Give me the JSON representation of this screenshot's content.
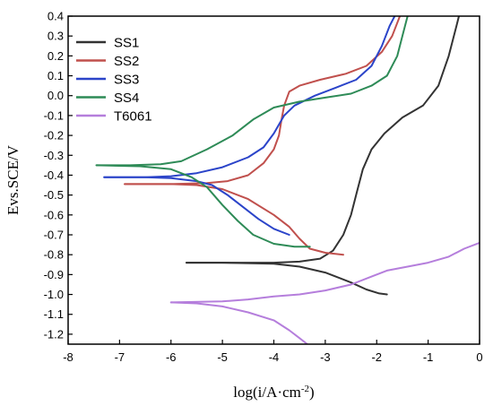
{
  "chart_data": {
    "type": "line",
    "title": "",
    "xlabel": "log(i/A·cm",
    "xlabel_sup": "-2",
    "xlabel_suffix": ")",
    "ylabel": "Evs.SCE/V",
    "xlim": [
      -8,
      0
    ],
    "ylim": [
      -1.25,
      0.4
    ],
    "x_ticks": [
      -8,
      -7,
      -6,
      -5,
      -4,
      -3,
      -2,
      -1,
      0
    ],
    "x_tick_labels": [
      "-8",
      "-7",
      "-6",
      "-5",
      "-4",
      "-3",
      "-2",
      "-1",
      "0"
    ],
    "y_ticks": [
      0.4,
      0.3,
      0.2,
      0.1,
      0.0,
      -0.1,
      -0.2,
      -0.3,
      -0.4,
      -0.5,
      -0.6,
      -0.7,
      -0.8,
      -0.9,
      -1.0,
      -1.1,
      -1.2
    ],
    "y_tick_labels": [
      "0.4",
      "0.3",
      "0.2",
      "0.1",
      "0.0",
      "-0.1",
      "-0.2",
      "-0.3",
      "-0.4",
      "-0.5",
      "-0.6",
      "-0.7",
      "-0.8",
      "-0.9",
      "-1.0",
      "-1.1",
      "-1.2"
    ],
    "grid": false,
    "legend_position": "top-left",
    "series": [
      {
        "name": "SS1",
        "color": "#333333",
        "segments": [
          [
            [
              -5.7,
              -0.84
            ],
            [
              -5.0,
              -0.84
            ],
            [
              -4.0,
              -0.84
            ],
            [
              -3.5,
              -0.835
            ],
            [
              -3.1,
              -0.82
            ],
            [
              -2.85,
              -0.78
            ],
            [
              -2.65,
              -0.7
            ],
            [
              -2.5,
              -0.6
            ],
            [
              -2.38,
              -0.48
            ],
            [
              -2.27,
              -0.37
            ],
            [
              -2.1,
              -0.27
            ],
            [
              -1.85,
              -0.19
            ],
            [
              -1.5,
              -0.11
            ],
            [
              -1.1,
              -0.05
            ],
            [
              -0.8,
              0.05
            ],
            [
              -0.6,
              0.2
            ],
            [
              -0.45,
              0.35
            ],
            [
              -0.4,
              0.4
            ]
          ],
          [
            [
              -5.7,
              -0.84
            ],
            [
              -5.0,
              -0.84
            ],
            [
              -4.0,
              -0.845
            ],
            [
              -3.5,
              -0.86
            ],
            [
              -3.0,
              -0.89
            ],
            [
              -2.5,
              -0.94
            ],
            [
              -2.2,
              -0.975
            ],
            [
              -1.95,
              -0.995
            ],
            [
              -1.8,
              -1.0
            ]
          ]
        ]
      },
      {
        "name": "SS2",
        "color": "#C0504D",
        "segments": [
          [
            [
              -6.9,
              -0.445
            ],
            [
              -6.0,
              -0.445
            ],
            [
              -5.3,
              -0.44
            ],
            [
              -4.9,
              -0.43
            ],
            [
              -4.5,
              -0.4
            ],
            [
              -4.2,
              -0.34
            ],
            [
              -4.0,
              -0.27
            ],
            [
              -3.9,
              -0.2
            ],
            [
              -3.85,
              -0.12
            ],
            [
              -3.8,
              -0.05
            ],
            [
              -3.7,
              0.02
            ],
            [
              -3.5,
              0.05
            ],
            [
              -3.1,
              0.08
            ],
            [
              -2.6,
              0.11
            ],
            [
              -2.2,
              0.15
            ],
            [
              -1.9,
              0.22
            ],
            [
              -1.7,
              0.3
            ],
            [
              -1.55,
              0.4
            ]
          ],
          [
            [
              -6.9,
              -0.445
            ],
            [
              -6.0,
              -0.445
            ],
            [
              -5.5,
              -0.45
            ],
            [
              -5.0,
              -0.47
            ],
            [
              -4.5,
              -0.52
            ],
            [
              -4.0,
              -0.6
            ],
            [
              -3.7,
              -0.66
            ],
            [
              -3.5,
              -0.72
            ],
            [
              -3.3,
              -0.77
            ],
            [
              -3.0,
              -0.79
            ],
            [
              -2.65,
              -0.8
            ]
          ]
        ]
      },
      {
        "name": "SS3",
        "color": "#2B44C9",
        "segments": [
          [
            [
              -7.3,
              -0.41
            ],
            [
              -6.5,
              -0.41
            ],
            [
              -6.0,
              -0.405
            ],
            [
              -5.5,
              -0.39
            ],
            [
              -5.0,
              -0.36
            ],
            [
              -4.5,
              -0.31
            ],
            [
              -4.2,
              -0.26
            ],
            [
              -4.0,
              -0.19
            ],
            [
              -3.8,
              -0.1
            ],
            [
              -3.6,
              -0.05
            ],
            [
              -3.2,
              0.0
            ],
            [
              -2.8,
              0.04
            ],
            [
              -2.4,
              0.08
            ],
            [
              -2.1,
              0.15
            ],
            [
              -1.9,
              0.25
            ],
            [
              -1.75,
              0.35
            ],
            [
              -1.65,
              0.4
            ]
          ],
          [
            [
              -7.3,
              -0.41
            ],
            [
              -6.5,
              -0.41
            ],
            [
              -6.0,
              -0.415
            ],
            [
              -5.5,
              -0.43
            ],
            [
              -5.2,
              -0.45
            ],
            [
              -4.9,
              -0.5
            ],
            [
              -4.6,
              -0.56
            ],
            [
              -4.3,
              -0.62
            ],
            [
              -4.0,
              -0.67
            ],
            [
              -3.7,
              -0.7
            ]
          ]
        ]
      },
      {
        "name": "SS4",
        "color": "#2E8B57",
        "segments": [
          [
            [
              -7.45,
              -0.35
            ],
            [
              -6.8,
              -0.35
            ],
            [
              -6.2,
              -0.345
            ],
            [
              -5.8,
              -0.33
            ],
            [
              -5.3,
              -0.27
            ],
            [
              -4.8,
              -0.2
            ],
            [
              -4.4,
              -0.12
            ],
            [
              -4.0,
              -0.06
            ],
            [
              -3.5,
              -0.03
            ],
            [
              -3.0,
              -0.01
            ],
            [
              -2.5,
              0.01
            ],
            [
              -2.1,
              0.05
            ],
            [
              -1.8,
              0.1
            ],
            [
              -1.6,
              0.2
            ],
            [
              -1.5,
              0.3
            ],
            [
              -1.4,
              0.4
            ]
          ],
          [
            [
              -7.45,
              -0.35
            ],
            [
              -6.6,
              -0.355
            ],
            [
              -6.0,
              -0.37
            ],
            [
              -5.6,
              -0.41
            ],
            [
              -5.3,
              -0.46
            ],
            [
              -5.0,
              -0.55
            ],
            [
              -4.7,
              -0.63
            ],
            [
              -4.4,
              -0.7
            ],
            [
              -4.0,
              -0.745
            ],
            [
              -3.6,
              -0.76
            ],
            [
              -3.3,
              -0.76
            ]
          ]
        ]
      },
      {
        "name": "T6061",
        "color": "#B57EDC",
        "segments": [
          [
            [
              -6.0,
              -1.04
            ],
            [
              -5.0,
              -1.035
            ],
            [
              -4.5,
              -1.025
            ],
            [
              -4.0,
              -1.01
            ],
            [
              -3.5,
              -1.0
            ],
            [
              -3.0,
              -0.98
            ],
            [
              -2.5,
              -0.95
            ],
            [
              -2.1,
              -0.91
            ],
            [
              -1.8,
              -0.88
            ],
            [
              -1.4,
              -0.86
            ],
            [
              -1.0,
              -0.84
            ],
            [
              -0.6,
              -0.81
            ],
            [
              -0.3,
              -0.77
            ],
            [
              0.0,
              -0.74
            ]
          ],
          [
            [
              -6.0,
              -1.04
            ],
            [
              -5.5,
              -1.045
            ],
            [
              -5.0,
              -1.06
            ],
            [
              -4.5,
              -1.09
            ],
            [
              -4.0,
              -1.13
            ],
            [
              -3.7,
              -1.18
            ],
            [
              -3.5,
              -1.22
            ],
            [
              -3.35,
              -1.25
            ]
          ]
        ]
      }
    ]
  }
}
